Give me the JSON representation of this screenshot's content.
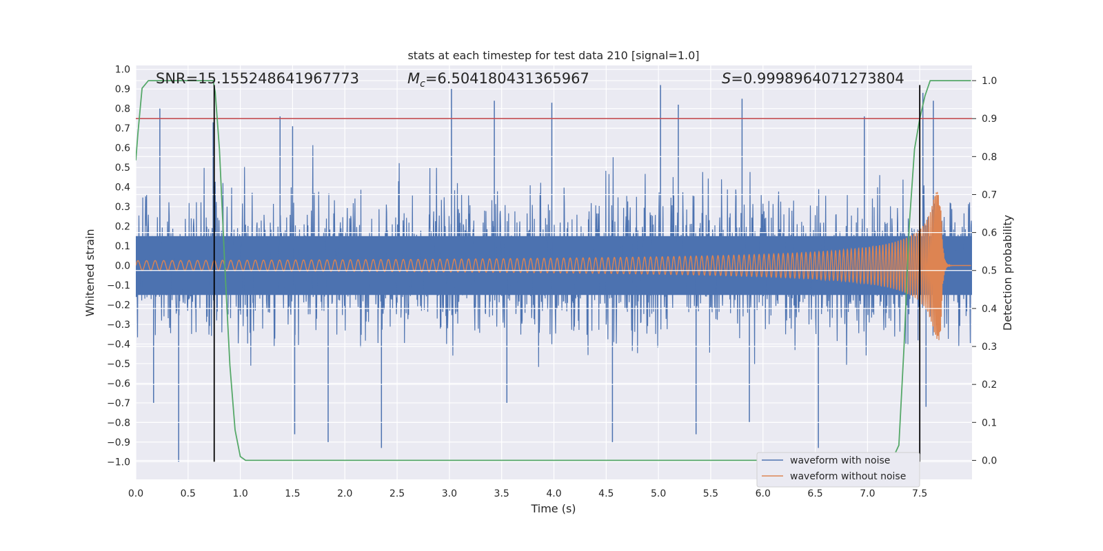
{
  "chart_data": {
    "type": "line",
    "title": "stats at each timestep for test data 210 [signal=1.0]",
    "xlabel": "Time (s)",
    "ylabel": "Whitened strain",
    "y2label": "Detection probability",
    "xlim": [
      0.0,
      8.0
    ],
    "ylim": [
      -1.09,
      1.02
    ],
    "y2lim": [
      -0.05,
      1.04
    ],
    "xticks": [
      0.0,
      0.5,
      1.0,
      1.5,
      2.0,
      2.5,
      3.0,
      3.5,
      4.0,
      4.5,
      5.0,
      5.5,
      6.0,
      6.5,
      7.0,
      7.5
    ],
    "xtick_labels": [
      "0.0",
      "0.5",
      "1.0",
      "1.5",
      "2.0",
      "2.5",
      "3.0",
      "3.5",
      "4.0",
      "4.5",
      "5.0",
      "5.5",
      "6.0",
      "6.5",
      "7.0",
      "7.5"
    ],
    "yticks": [
      1.0,
      0.9,
      0.8,
      0.7,
      0.6,
      0.5,
      0.4,
      0.3,
      0.2,
      0.1,
      0.0,
      -0.1,
      -0.2,
      -0.3,
      -0.4,
      -0.5,
      -0.6,
      -0.7,
      -0.8,
      -0.9,
      -1.0
    ],
    "ytick_labels": [
      "1.0",
      "0.9",
      "0.8",
      "0.7",
      "0.6",
      "0.5",
      "0.4",
      "0.3",
      "0.2",
      "0.1",
      "0.0",
      "−0.1",
      "−0.2",
      "−0.3",
      "−0.4",
      "−0.5",
      "−0.6",
      "−0.7",
      "−0.8",
      "−0.9",
      "−1.0"
    ],
    "y2ticks": [
      1.0,
      0.9,
      0.8,
      0.7,
      0.6,
      0.5,
      0.4,
      0.3,
      0.2,
      0.1,
      0.0
    ],
    "y2tick_labels": [
      "1.0",
      "0.9",
      "0.8",
      "0.7",
      "0.6",
      "0.5",
      "0.4",
      "0.3",
      "0.2",
      "0.1",
      "0.0"
    ],
    "grid": true,
    "legend_position": "bottom-right",
    "annotations": {
      "snr": "SNR=15.155248641967773",
      "mc_symbol": "M",
      "mc_sub": "c",
      "mc_value": "=6.504180431365967",
      "s_symbol": "S",
      "s_value": "=0.9998964071273804"
    },
    "threshold": {
      "value": 0.9,
      "axis": "right",
      "color": "#c44e52"
    },
    "vertical_lines": {
      "x": [
        0.75,
        7.5
      ],
      "y_range": [
        -1.0,
        0.92
      ],
      "color": "#000000"
    },
    "series": [
      {
        "name": "waveform with noise",
        "color": "#4c72b0",
        "axis": "left",
        "kind": "noise",
        "std": 0.17,
        "fill_band": [
          -0.15,
          0.15
        ],
        "spikes": [
          {
            "x": 0.41,
            "y": -1.0
          },
          {
            "x": 0.17,
            "y": -0.7
          },
          {
            "x": 0.23,
            "y": 0.8
          },
          {
            "x": 0.74,
            "y": 0.73
          },
          {
            "x": 1.38,
            "y": 0.76
          },
          {
            "x": 1.52,
            "y": -0.86
          },
          {
            "x": 1.84,
            "y": -0.9
          },
          {
            "x": 2.35,
            "y": -0.93
          },
          {
            "x": 3.02,
            "y": 0.9
          },
          {
            "x": 3.43,
            "y": 0.84
          },
          {
            "x": 3.55,
            "y": -0.7
          },
          {
            "x": 3.98,
            "y": 0.83
          },
          {
            "x": 4.56,
            "y": -0.9
          },
          {
            "x": 5.02,
            "y": 0.92
          },
          {
            "x": 5.19,
            "y": 0.82
          },
          {
            "x": 5.36,
            "y": -0.86
          },
          {
            "x": 5.8,
            "y": 0.85
          },
          {
            "x": 5.87,
            "y": -0.8
          },
          {
            "x": 6.53,
            "y": -0.93
          },
          {
            "x": 6.97,
            "y": 0.76
          },
          {
            "x": 7.53,
            "y": 0.88
          },
          {
            "x": 7.63,
            "y": 0.84
          },
          {
            "x": 7.56,
            "y": -0.72
          },
          {
            "x": 1.5,
            "y": 0.71
          }
        ]
      },
      {
        "name": "waveform without noise",
        "color": "#dd8452",
        "axis": "left",
        "kind": "chirp",
        "merger_time": 7.7,
        "start_amplitude": 0.025,
        "peak_amplitude": 0.38
      },
      {
        "name": "detection probability",
        "color": "#55a868",
        "axis": "right",
        "kind": "line",
        "x": [
          0.0,
          0.02,
          0.06,
          0.12,
          0.2,
          0.4,
          0.6,
          0.7,
          0.74,
          0.76,
          0.8,
          0.85,
          0.9,
          0.95,
          1.0,
          1.05,
          1.1,
          1.2,
          2.0,
          4.0,
          6.0,
          7.0,
          7.2,
          7.25,
          7.3,
          7.35,
          7.4,
          7.45,
          7.5,
          7.55,
          7.6,
          7.7,
          7.99
        ],
        "y": [
          0.79,
          0.86,
          0.98,
          1.0,
          1.0,
          1.0,
          1.0,
          1.0,
          1.0,
          0.97,
          0.82,
          0.52,
          0.25,
          0.08,
          0.01,
          0.0,
          0.0,
          0.0,
          0.0,
          0.0,
          0.0,
          0.0,
          0.0,
          0.01,
          0.04,
          0.3,
          0.62,
          0.82,
          0.9,
          0.96,
          1.0,
          1.0,
          1.0
        ]
      }
    ],
    "legend": [
      "waveform with noise",
      "waveform without noise"
    ]
  }
}
